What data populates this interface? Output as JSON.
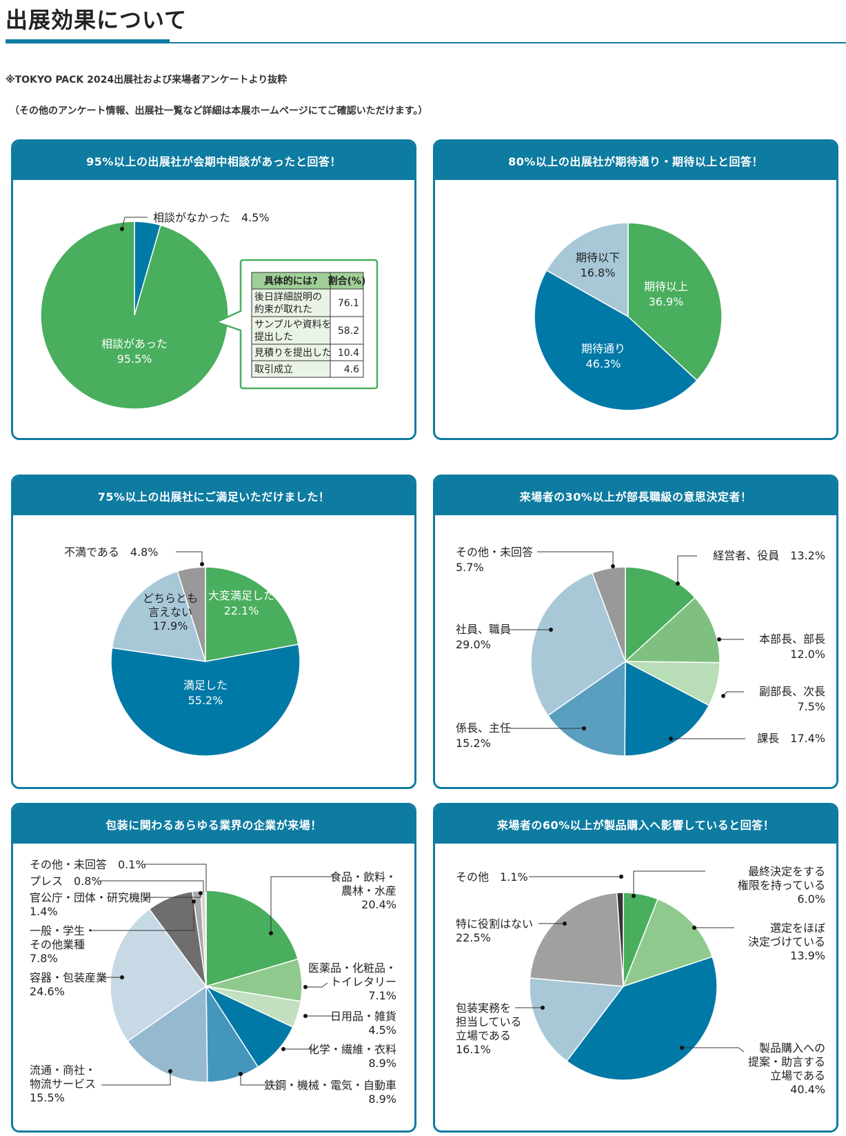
{
  "page": {
    "title": "出展効果について",
    "note1": "※TOKYO PACK 2024出展社および来場者アンケートより抜粋",
    "note2": "（その他のアンケート情報、出展社一覧など詳細は本展ホームページにてご確認いただけます。）"
  },
  "chart_data": [
    {
      "type": "pie",
      "title": "95%以上の出展社が会期中相談があったと回答！",
      "series": [
        {
          "name": "相談がなかった",
          "value": 4.5,
          "label": "相談がなかった　4.5%",
          "color": "#0079a7"
        },
        {
          "name": "相談があった",
          "value": 95.5,
          "label": "相談があった",
          "pct": "95.5%",
          "color": "#49ae5d"
        }
      ],
      "table": {
        "header": [
          "具体的には?",
          "割合(%)"
        ],
        "rows": [
          {
            "item": [
              "後日詳細説明の",
              "約束が取れた"
            ],
            "value": "76.1"
          },
          {
            "item": [
              "サンプルや資料を",
              "提出した"
            ],
            "value": "58.2"
          },
          {
            "item": [
              "見積りを提出した"
            ],
            "value": "10.4"
          },
          {
            "item": [
              "取引成立"
            ],
            "value": "4.6"
          }
        ]
      }
    },
    {
      "type": "pie",
      "title": "80%以上の出展社が期待通り・期待以上と回答！",
      "series": [
        {
          "name": "期待以上",
          "value": 36.9,
          "pct": "36.9%",
          "color": "#49ae5d"
        },
        {
          "name": "期待通り",
          "value": 46.3,
          "pct": "46.3%",
          "color": "#0079a7"
        },
        {
          "name": "期待以下",
          "value": 16.8,
          "pct": "16.8%",
          "color": "#a8c8d8"
        }
      ]
    },
    {
      "type": "pie",
      "title": "75%以上の出展社にご満足いただけました！",
      "series": [
        {
          "name": "大変満足した",
          "value": 22.1,
          "pct": "22.1%",
          "color": "#49ae5d"
        },
        {
          "name": "満足した",
          "value": 55.2,
          "pct": "55.2%",
          "color": "#0079a7"
        },
        {
          "name": "どちらとも言えない",
          "lines": [
            "どちらとも",
            "言えない"
          ],
          "value": 17.9,
          "pct": "17.9%",
          "color": "#a8c8d8"
        },
        {
          "name": "不満である",
          "value": 4.8,
          "label": "不満である　4.8%",
          "color": "#999999"
        }
      ]
    },
    {
      "type": "pie",
      "title": "来場者の30%以上が部長職級の意思決定者！",
      "series": [
        {
          "name": "経営者、役員",
          "value": 13.2,
          "label": "経営者、役員　13.2%",
          "color": "#49ae5d"
        },
        {
          "name": "本部長、部長",
          "value": 12.0,
          "label": "本部長、部長",
          "pct": "12.0%",
          "color": "#7fc081"
        },
        {
          "name": "副部長、次長",
          "value": 7.5,
          "label": "副部長、次長",
          "pct": "7.5%",
          "color": "#b9ddb6"
        },
        {
          "name": "課長",
          "value": 17.4,
          "label": "課長　17.4%",
          "color": "#0079a7"
        },
        {
          "name": "係長、主任",
          "value": 15.2,
          "label": "係長、主任",
          "pct": "15.2%",
          "color": "#5a9fbf"
        },
        {
          "name": "社員、職員",
          "value": 29.0,
          "label": "社員、職員",
          "pct": "29.0%",
          "color": "#a8c8d8"
        },
        {
          "name": "その他・未回答",
          "value": 5.7,
          "label": "その他・未回答",
          "pct": "5.7%",
          "color": "#999999"
        }
      ]
    },
    {
      "type": "pie",
      "title": "包装に関わるあらゆる業界の企業が来場！",
      "series": [
        {
          "name": "食品・飲料・農林・水産",
          "lines": [
            "食品・飲料・",
            "農林・水産",
            "20.4%"
          ],
          "value": 20.4,
          "color": "#49ae5d"
        },
        {
          "name": "医薬品・化粧品・トイレタリー",
          "lines": [
            "医薬品・化粧品・",
            "トイレタリー",
            "7.1%"
          ],
          "value": 7.1,
          "color": "#90c98d"
        },
        {
          "name": "日用品・雑貨",
          "lines": [
            "日用品・雑貨",
            "4.5%"
          ],
          "value": 4.5,
          "color": "#c2e0bf"
        },
        {
          "name": "化学・繊維・衣料",
          "lines": [
            "化学・繊維・衣料",
            "8.9%"
          ],
          "value": 8.9,
          "color": "#0079a7"
        },
        {
          "name": "鉄鋼・機械・電気・自動車",
          "lines": [
            "鉄鋼・機械・電気・自動車",
            "8.9%"
          ],
          "value": 8.9,
          "color": "#4496bd"
        },
        {
          "name": "流通・商社・物流サービス",
          "lines": [
            "流通・商社・",
            "物流サービス",
            "15.5%"
          ],
          "value": 15.5,
          "color": "#95b9cf"
        },
        {
          "name": "容器・包装産業",
          "lines": [
            "容器・包装産業",
            "24.6%"
          ],
          "value": 24.6,
          "color": "#c6d9e5"
        },
        {
          "name": "一般・学生・その他業種",
          "lines": [
            "一般・学生・",
            "その他業種",
            "7.8%"
          ],
          "value": 7.8,
          "color": "#6e6e6e"
        },
        {
          "name": "官公庁・団体・研究機関",
          "lines": [
            "官公庁・団体・研究機関",
            "1.4%"
          ],
          "value": 1.4,
          "color": "#aaaaaa"
        },
        {
          "name": "プレス",
          "lines": [
            "プレス　0.8%"
          ],
          "value": 0.8,
          "color": "#d4d4d4"
        },
        {
          "name": "その他・未回答",
          "lines": [
            "その他・未回答　0.1%"
          ],
          "value": 0.1,
          "color": "#333333"
        }
      ]
    },
    {
      "type": "pie",
      "title": "来場者の60%以上が製品購入へ影響していると回答！",
      "series": [
        {
          "name": "最終決定をする権限を持っている",
          "lines": [
            "最終決定をする",
            "権限を持っている",
            "6.0%"
          ],
          "value": 6.0,
          "color": "#49ae5d"
        },
        {
          "name": "選定をほぼ決定づけている",
          "lines": [
            "選定をほぼ",
            "決定づけている",
            "13.9%"
          ],
          "value": 13.9,
          "color": "#90c98d"
        },
        {
          "name": "製品購入への提案・助言する立場である",
          "lines": [
            "製品購入への",
            "提案・助言する",
            "立場である",
            "40.4%"
          ],
          "value": 40.4,
          "color": "#0079a7"
        },
        {
          "name": "包装実務を担当している立場である",
          "lines": [
            "包装実務を",
            "担当している",
            "立場である",
            "16.1%"
          ],
          "value": 16.1,
          "color": "#a8c8d8"
        },
        {
          "name": "特に役割はない",
          "lines": [
            "特に役割はない",
            "22.5%"
          ],
          "value": 22.5,
          "color": "#a0a0a0"
        },
        {
          "name": "その他",
          "lines": [
            "その他　1.1%"
          ],
          "value": 1.1,
          "color": "#333333"
        }
      ]
    }
  ]
}
